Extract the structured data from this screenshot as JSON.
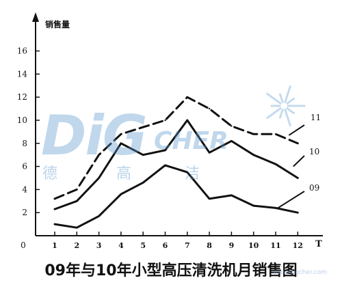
{
  "chart_data": {
    "type": "line",
    "title": "09年与10年小型高压清洗机月销售图",
    "ylabel": "销售量",
    "xlabel": "T",
    "origin_label": "0",
    "categories": [
      "1",
      "2",
      "3",
      "4",
      "5",
      "6",
      "7",
      "8",
      "9",
      "10",
      "11",
      "12"
    ],
    "y_ticks": [
      "2",
      "4",
      "6",
      "8",
      "10",
      "12",
      "14",
      "16"
    ],
    "ylim": [
      0,
      18
    ],
    "series": [
      {
        "name": "11",
        "style": "dashed",
        "values": [
          3.2,
          4.0,
          7.0,
          8.8,
          9.4,
          10.0,
          12.0,
          11.0,
          9.5,
          8.8,
          8.8,
          8.0
        ]
      },
      {
        "name": "10",
        "style": "solid",
        "values": [
          2.3,
          3.0,
          5.0,
          8.0,
          7.0,
          7.4,
          10.0,
          7.2,
          8.2,
          7.0,
          6.2,
          5.0
        ]
      },
      {
        "name": "09",
        "style": "solid",
        "values": [
          1.0,
          0.7,
          1.7,
          3.6,
          4.6,
          6.1,
          5.5,
          3.2,
          3.5,
          2.6,
          2.4,
          2.0
        ]
      }
    ],
    "grid": false,
    "legend": "inline-right"
  },
  "watermark": {
    "brand_main": "DiG",
    "brand_tail": "CHER",
    "cn_chars": [
      "德",
      "高",
      "洁"
    ],
    "url": "www.digcher.com"
  }
}
